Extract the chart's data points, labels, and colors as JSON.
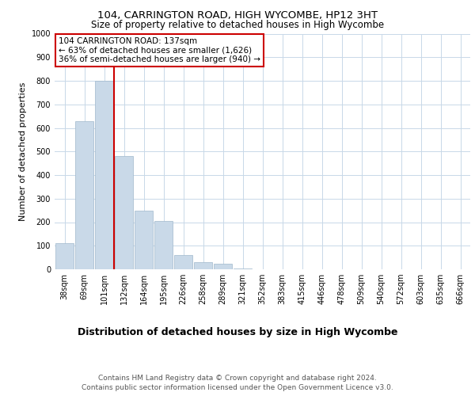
{
  "title1": "104, CARRINGTON ROAD, HIGH WYCOMBE, HP12 3HT",
  "title2": "Size of property relative to detached houses in High Wycombe",
  "xlabel": "Distribution of detached houses by size in High Wycombe",
  "ylabel": "Number of detached properties",
  "footer1": "Contains HM Land Registry data © Crown copyright and database right 2024.",
  "footer2": "Contains public sector information licensed under the Open Government Licence v3.0.",
  "annotation_line1": "104 CARRINGTON ROAD: 137sqm",
  "annotation_line2": "← 63% of detached houses are smaller (1,626)",
  "annotation_line3": "36% of semi-detached houses are larger (940) →",
  "bar_labels": [
    "38sqm",
    "69sqm",
    "101sqm",
    "132sqm",
    "164sqm",
    "195sqm",
    "226sqm",
    "258sqm",
    "289sqm",
    "321sqm",
    "352sqm",
    "383sqm",
    "415sqm",
    "446sqm",
    "478sqm",
    "509sqm",
    "540sqm",
    "572sqm",
    "603sqm",
    "635sqm",
    "666sqm"
  ],
  "bar_values": [
    110,
    630,
    800,
    480,
    250,
    205,
    60,
    30,
    25,
    5,
    0,
    0,
    0,
    0,
    0,
    0,
    0,
    0,
    0,
    0,
    0
  ],
  "bar_color": "#c9d9e8",
  "bar_edge_color": "#a0b8cc",
  "vline_color": "#cc0000",
  "vline_position": 3,
  "annotation_box_color": "#cc0000",
  "ylim": [
    0,
    1000
  ],
  "yticks": [
    0,
    100,
    200,
    300,
    400,
    500,
    600,
    700,
    800,
    900,
    1000
  ],
  "background_color": "#ffffff",
  "grid_color": "#c8d8e8",
  "title1_fontsize": 9.5,
  "title2_fontsize": 8.5,
  "xlabel_fontsize": 9,
  "ylabel_fontsize": 8,
  "tick_fontsize": 7,
  "annotation_fontsize": 7.5,
  "footer_fontsize": 6.5
}
